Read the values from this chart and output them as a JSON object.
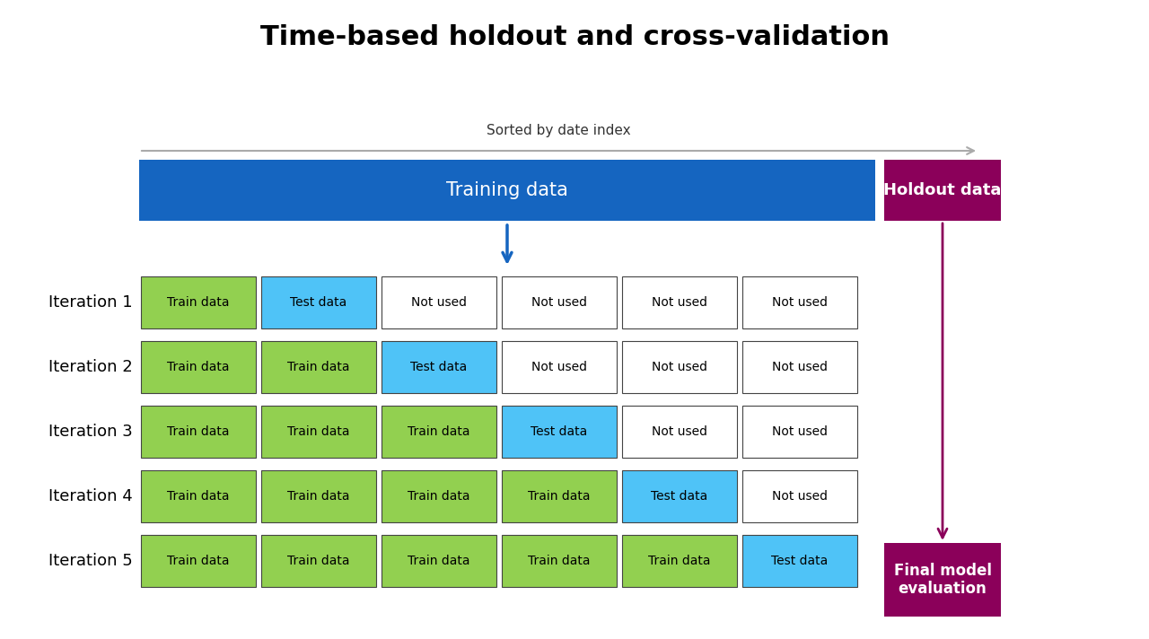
{
  "title": "Time-based holdout and cross-validation",
  "title_fontsize": 22,
  "title_fontweight": "bold",
  "bg_color": "#ffffff",
  "sorted_label": "Sorted by date index",
  "training_bar": {
    "label": "Training data",
    "color": "#1565C0",
    "text_color": "#ffffff",
    "fontsize": 15
  },
  "holdout_bar": {
    "label": "Holdout data",
    "color": "#8B005A",
    "text_color": "#ffffff",
    "fontsize": 13
  },
  "final_box": {
    "label": "Final model\nevaluation",
    "color": "#8B005A",
    "text_color": "#ffffff",
    "fontsize": 12
  },
  "arrow_sorted_color": "#aaaaaa",
  "arrow_blue_color": "#1565C0",
  "arrow_purple_color": "#8B005A",
  "iterations": [
    "Iteration 1",
    "Iteration 2",
    "Iteration 3",
    "Iteration 4",
    "Iteration 5"
  ],
  "iteration_fontsize": 13,
  "cell_colors": {
    "train": "#92D050",
    "test": "#4FC3F7",
    "not_used": "#ffffff"
  },
  "cell_border_color": "#444444",
  "cell_text_color": "#000000",
  "cell_train_label": "Train data",
  "cell_test_label": "Test data",
  "cell_not_used_label": "Not used",
  "cell_fontsize": 10,
  "num_cols": 6,
  "num_rows": 5
}
